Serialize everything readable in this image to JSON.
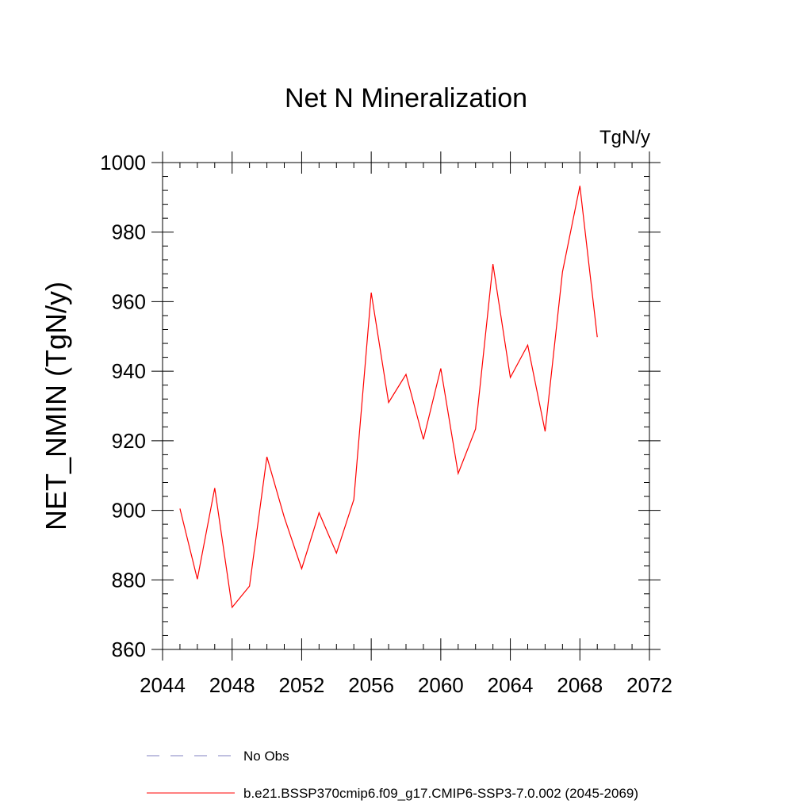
{
  "chart_data": {
    "type": "line",
    "title": "Net N Mineralization",
    "units_label": "TgN/y",
    "ylabel": "NET_NMIN  (TgN/y)",
    "xlabel": "",
    "xlim": [
      2044,
      2072
    ],
    "ylim": [
      860,
      1000
    ],
    "x_ticks": [
      2044,
      2048,
      2052,
      2056,
      2060,
      2064,
      2068,
      2072
    ],
    "y_ticks": [
      860,
      880,
      900,
      920,
      940,
      960,
      980,
      1000
    ],
    "grid": false,
    "legend_position": "bottom",
    "series": [
      {
        "name": "b.e21.BSSP370cmip6.f09_g17.CMIP6-SSP3-7.0.002 (2045-2069)",
        "color": "#ff0000",
        "style": "solid",
        "x": [
          2045,
          2046,
          2047,
          2048,
          2049,
          2050,
          2051,
          2052,
          2053,
          2054,
          2055,
          2056,
          2057,
          2058,
          2059,
          2060,
          2061,
          2062,
          2063,
          2064,
          2065,
          2066,
          2067,
          2068,
          2069
        ],
        "values": [
          900.5,
          880.2,
          906.4,
          872.1,
          878.2,
          915.4,
          898.0,
          883.2,
          899.3,
          887.7,
          903.1,
          962.6,
          931.0,
          939.1,
          920.4,
          940.8,
          910.6,
          923.4,
          970.8,
          938.2,
          947.5,
          922.7,
          968.6,
          993.3,
          949.8
        ]
      },
      {
        "name": "No Obs",
        "color": "#8080c0",
        "style": "dashed",
        "x": [],
        "values": []
      }
    ]
  }
}
